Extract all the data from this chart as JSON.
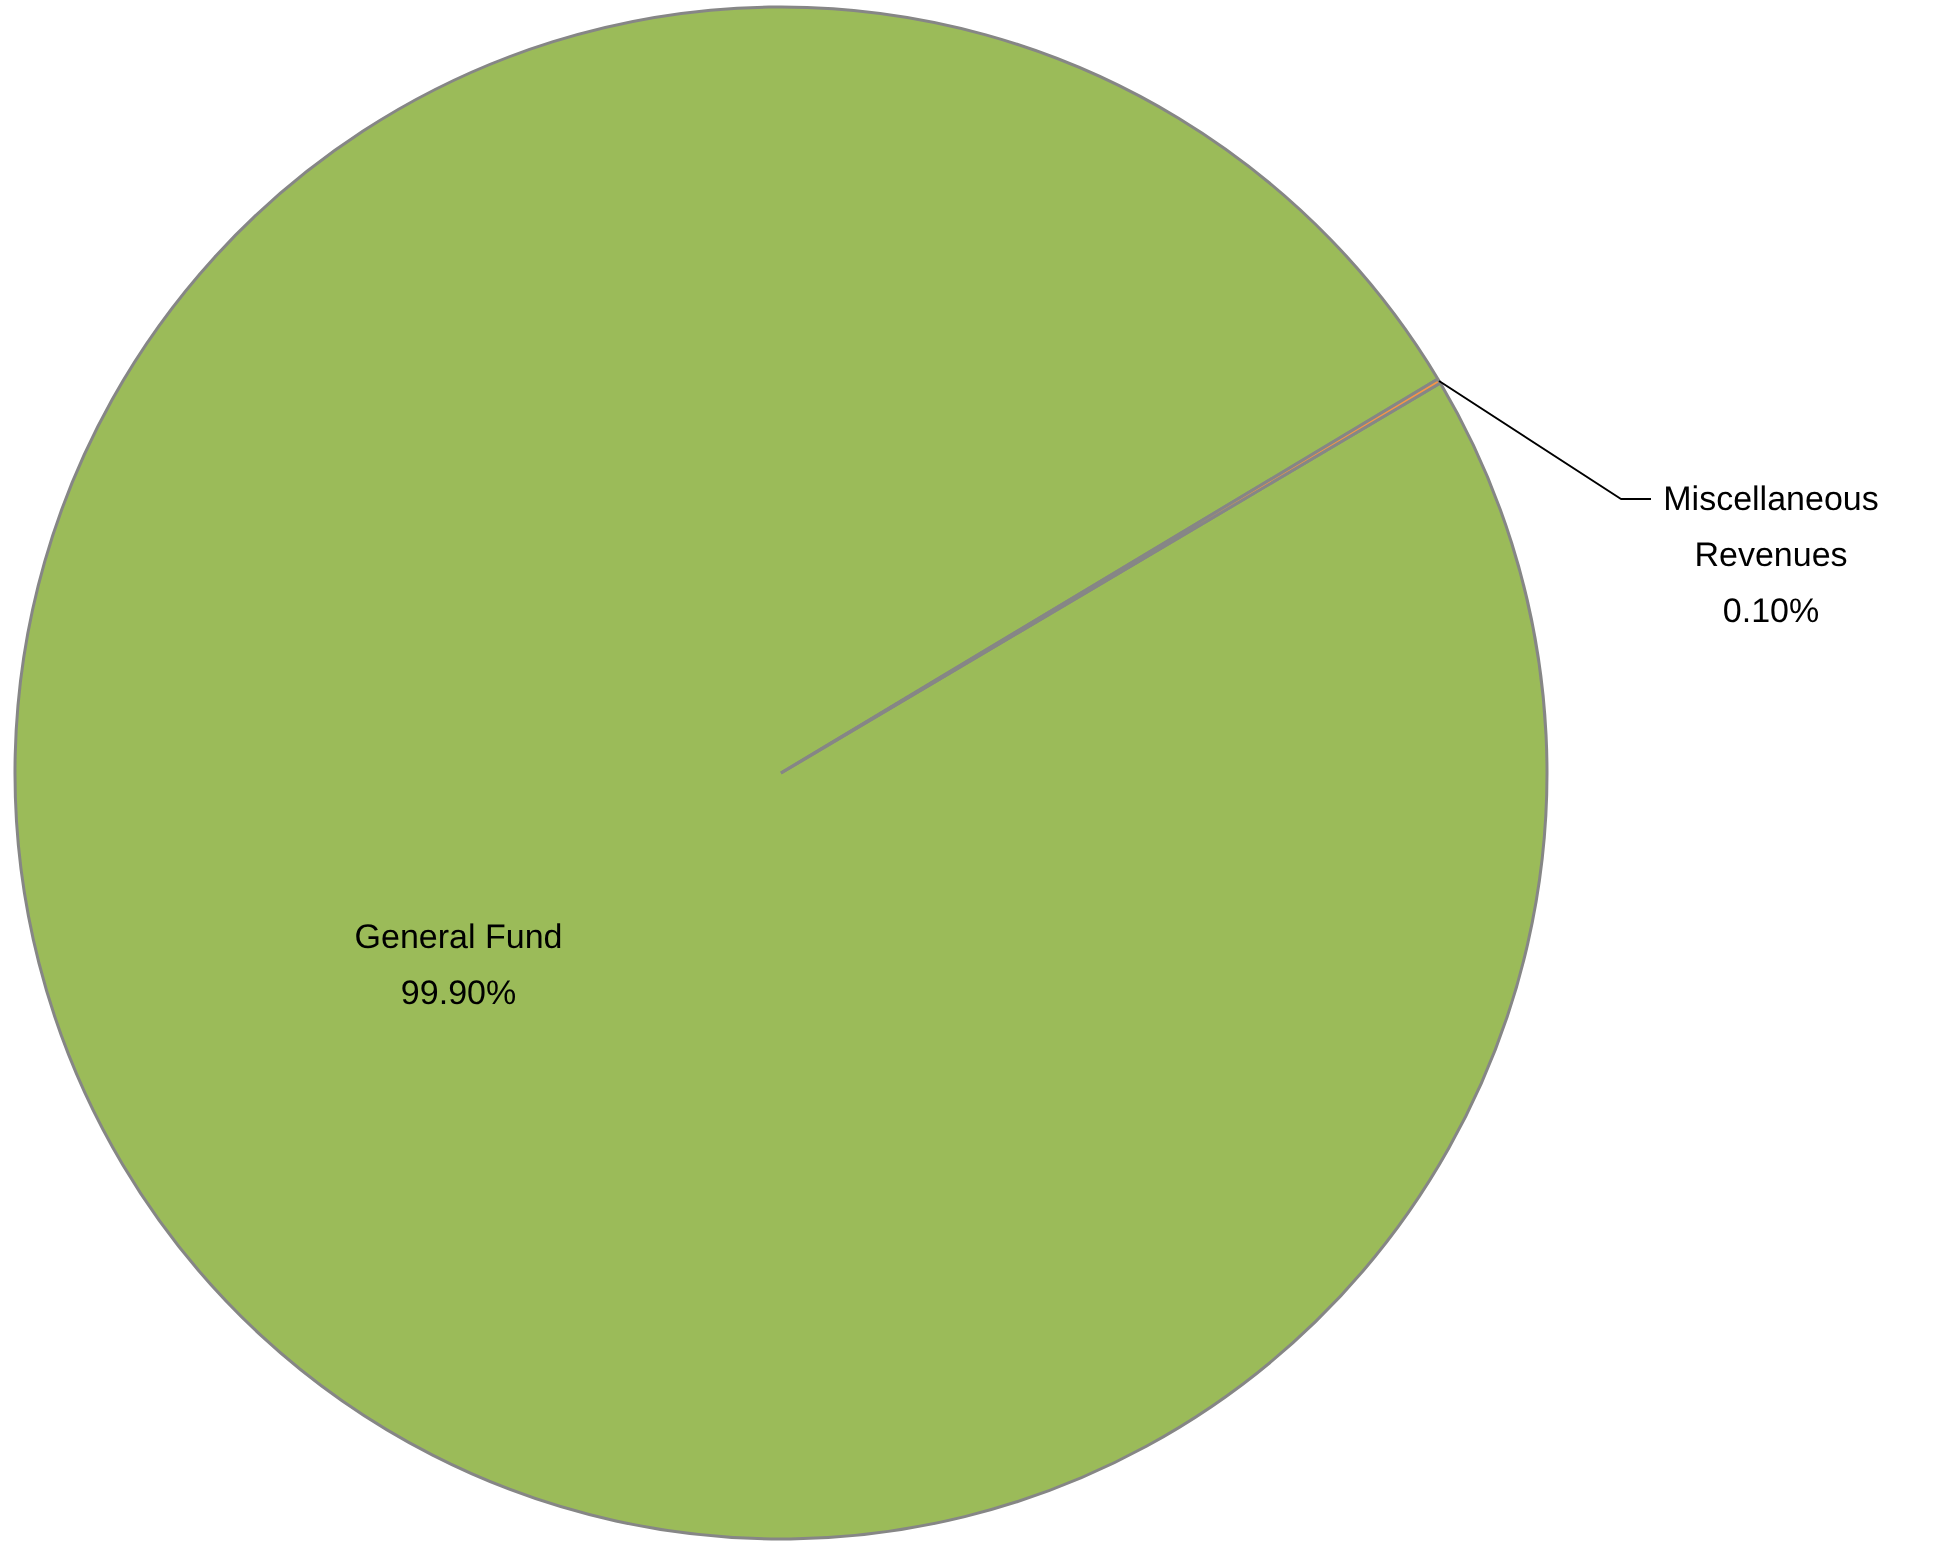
{
  "chart_data": {
    "type": "pie",
    "categories": [
      "General Fund",
      "Miscellaneous Revenues"
    ],
    "values": [
      99.9,
      0.1
    ],
    "colors": [
      "#9bbb59",
      "#f79646"
    ],
    "data_labels": true,
    "value_labels": [
      "99.90%",
      "0.10%"
    ]
  }
}
